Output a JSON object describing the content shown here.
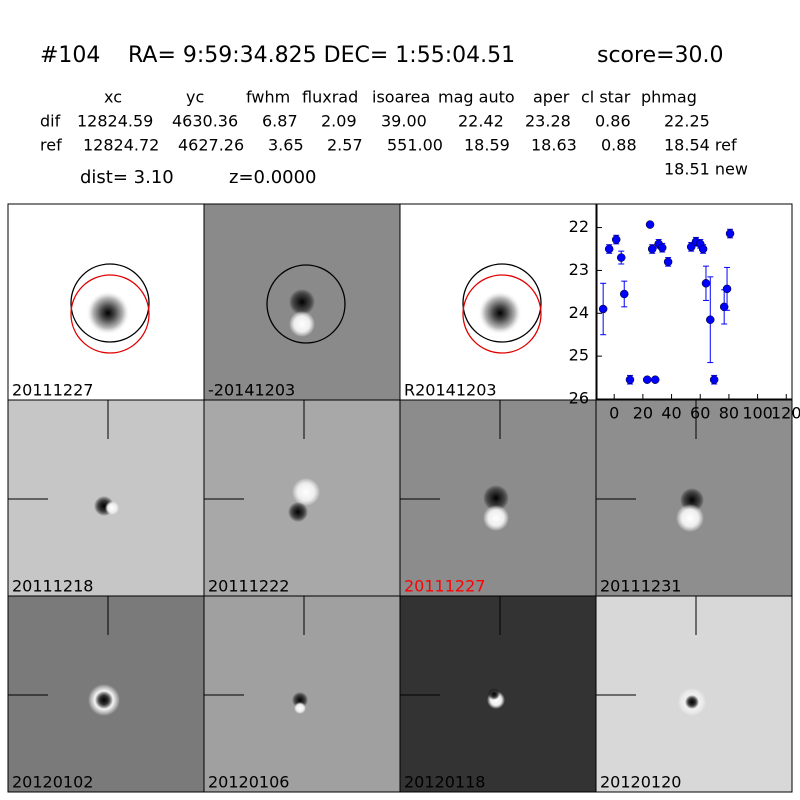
{
  "header": {
    "id": "#104",
    "coords": "RA= 9:59:34.825 DEC= 1:55:04.51",
    "score": "score=30.0"
  },
  "table": {
    "columns": [
      "xc",
      "yc",
      "fwhm",
      "fluxrad",
      "isoarea",
      "mag auto",
      "aper",
      "cl star",
      "phmag"
    ],
    "rows": [
      [
        "dif",
        "12824.59",
        "4630.36",
        "6.87",
        "2.09",
        "39.00",
        "22.42",
        "23.28",
        "0.86",
        "22.25"
      ],
      [
        "ref",
        "12824.72",
        "4627.26",
        "3.65",
        "2.57",
        "551.00",
        "18.59",
        "18.63",
        "0.88",
        "18.54 ref"
      ]
    ],
    "extra": "18.51 new",
    "dist": "dist=  3.10",
    "z": "z=0.0000"
  },
  "panels": [
    {
      "label": "20111227"
    },
    {
      "label": "-20141203"
    },
    {
      "label": "R20141203"
    },
    {
      "label": "20111218"
    },
    {
      "label": "20111222"
    },
    {
      "label": "20111227",
      "label_color": "#ff0000"
    },
    {
      "label": "20111231"
    },
    {
      "label": "20120102"
    },
    {
      "label": "20120106"
    },
    {
      "label": "20120118"
    },
    {
      "label": "20120120"
    }
  ],
  "chart_data": {
    "type": "scatter",
    "color": "#0000ff",
    "x": [
      -7.7,
      -3.5,
      1.4,
      4.9,
      7,
      11,
      25,
      23,
      26.5,
      28.6,
      31,
      33.5,
      37.6,
      53.7,
      57,
      60,
      62,
      64,
      67,
      69.7,
      76.7,
      78.7,
      80.8
    ],
    "values": [
      23.9,
      22.5,
      22.28,
      22.7,
      23.55,
      25.55,
      21.93,
      25.55,
      22.5,
      25.55,
      22.38,
      22.47,
      22.8,
      22.45,
      22.33,
      22.38,
      22.5,
      23.3,
      24.15,
      25.55,
      23.85,
      23.43,
      22.14
    ],
    "errors": [
      0.6,
      0.1,
      0.1,
      0.15,
      0.3,
      0.1,
      0.05,
      0.05,
      0.1,
      0.05,
      0.1,
      0.1,
      0.1,
      0.1,
      0.1,
      0.1,
      0.1,
      0.4,
      1.0,
      0.1,
      0.4,
      0.5,
      0.1
    ],
    "xlim": [
      -12,
      124
    ],
    "ylim": [
      26,
      21.45
    ],
    "xticks": [
      0,
      20,
      40,
      60,
      80,
      100,
      120
    ],
    "yticks": [
      22,
      23,
      24,
      25,
      26
    ]
  }
}
